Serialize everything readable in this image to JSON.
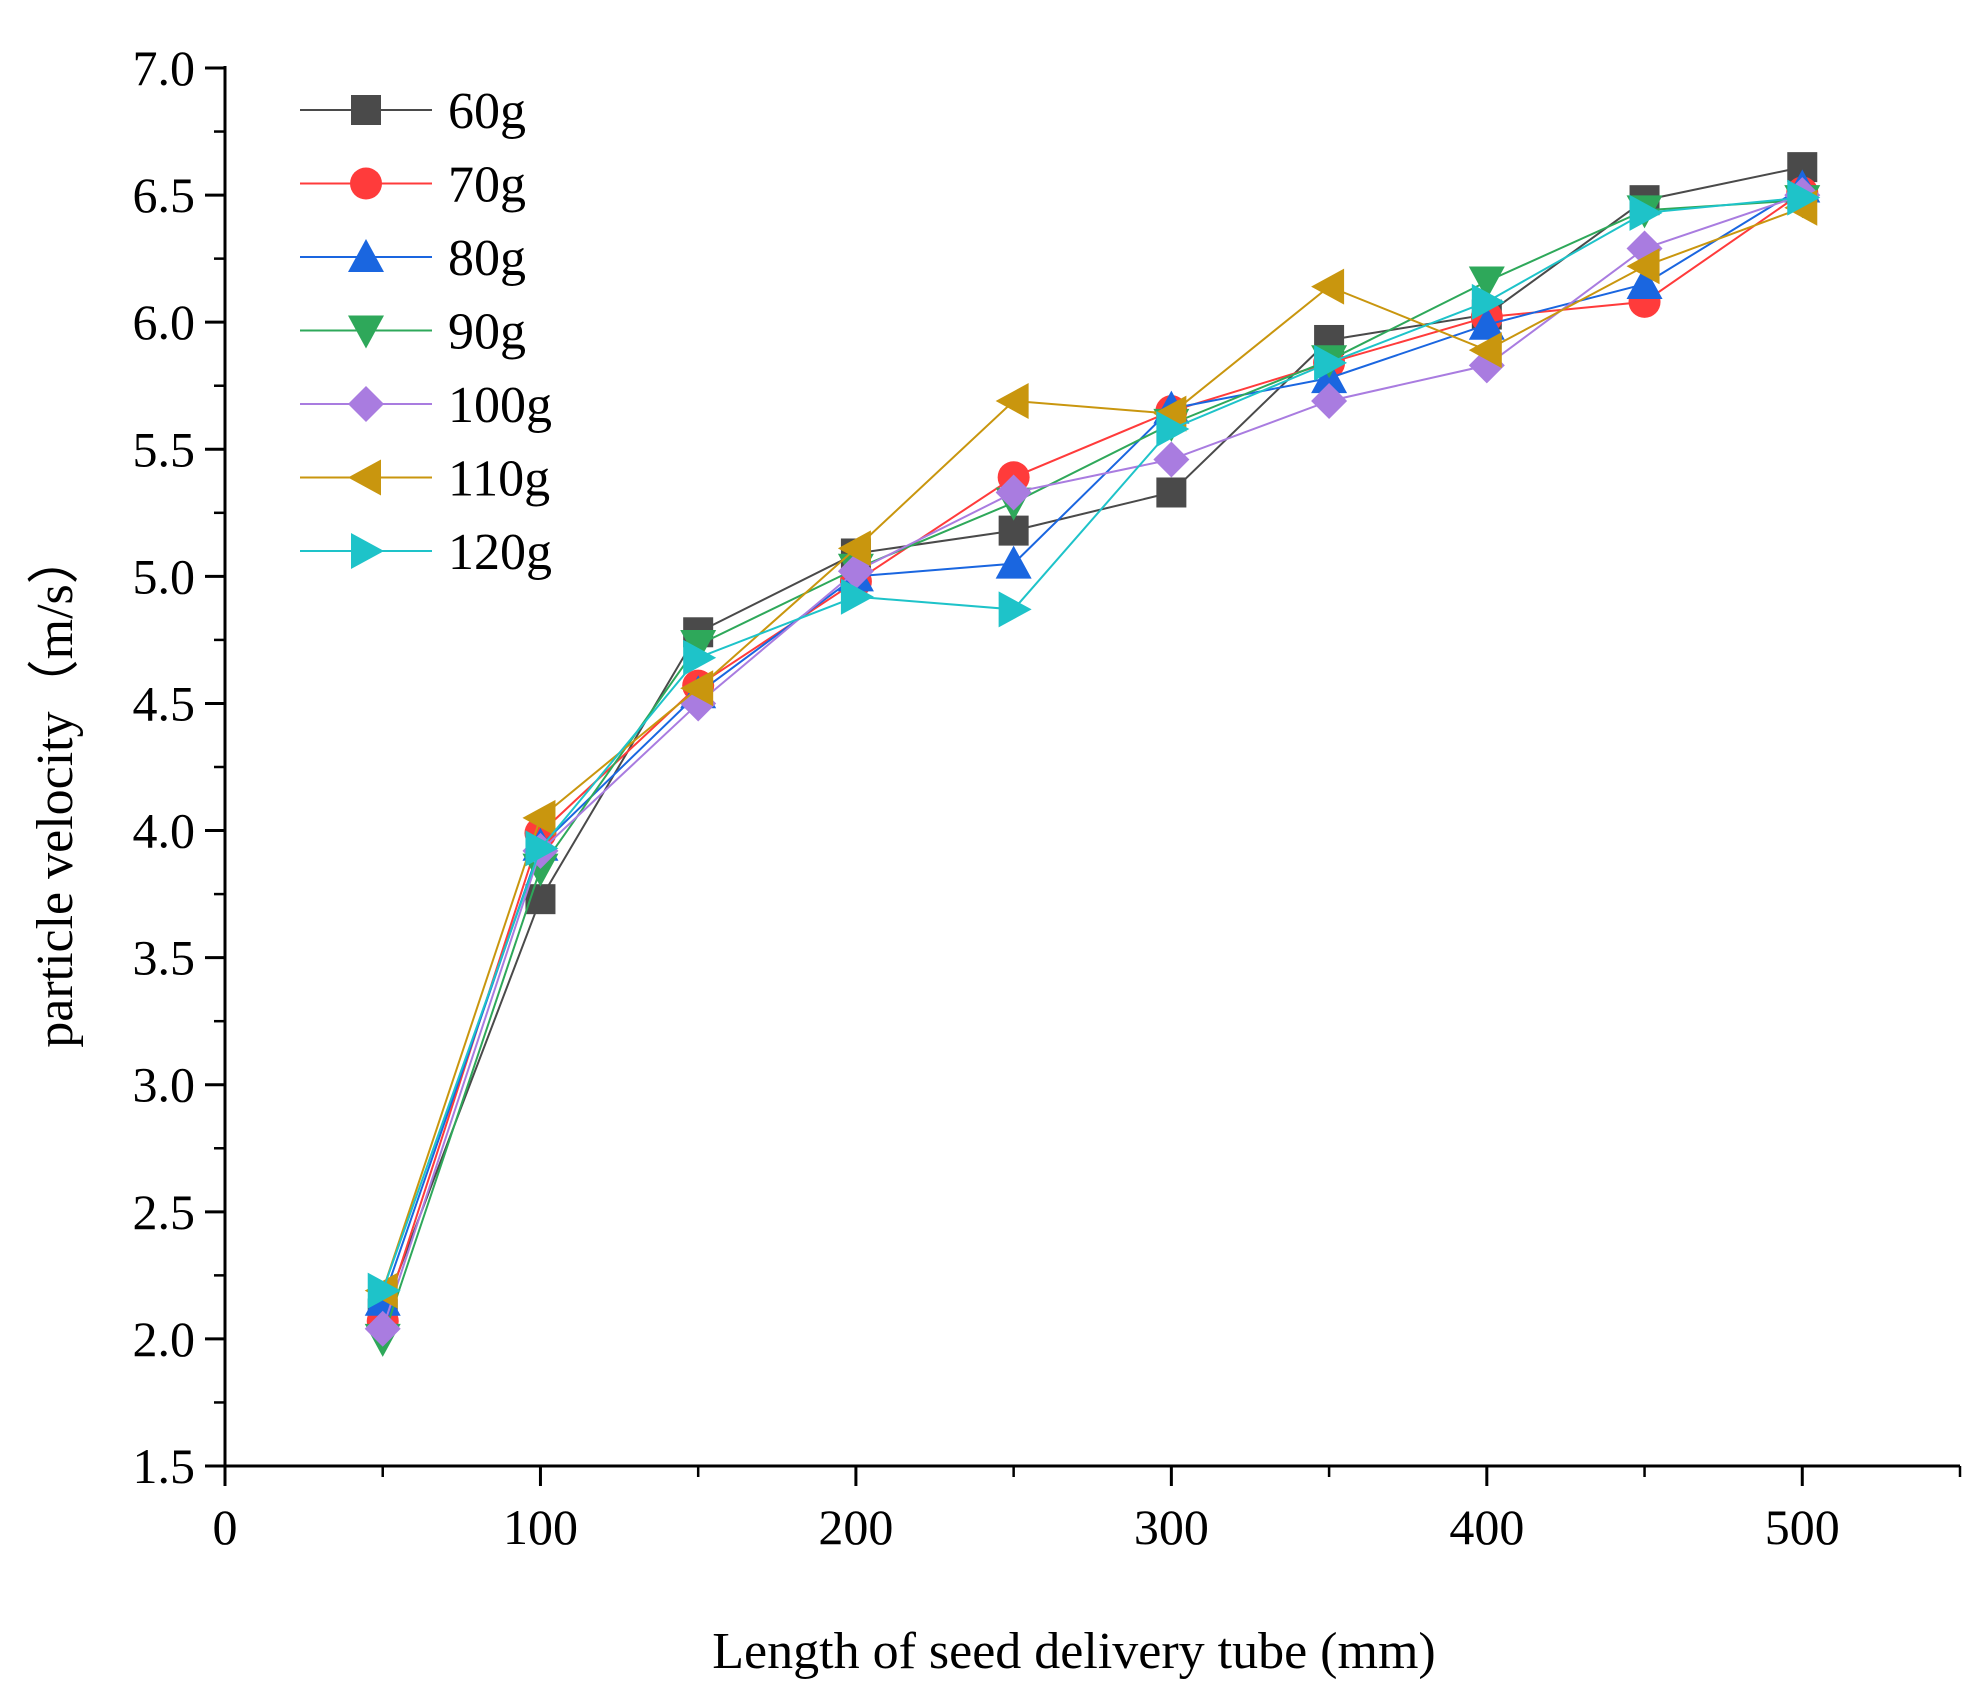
{
  "chart_data": {
    "type": "line",
    "title": "",
    "xlabel": "Length of seed delivery tube (mm)",
    "ylabel": "particle velocity（m/s）",
    "xlim": [
      0,
      550
    ],
    "ylim": [
      1.5,
      7.0
    ],
    "xticks": [
      "0",
      "100",
      "200",
      "300",
      "400",
      "500"
    ],
    "yticks": [
      "1.5",
      "2.0",
      "2.5",
      "3.0",
      "3.5",
      "4.0",
      "4.5",
      "5.0",
      "5.5",
      "6.0",
      "6.5",
      "7.0"
    ],
    "grid": false,
    "legend_position": "top-left",
    "x": [
      50,
      100,
      150,
      200,
      250,
      300,
      350,
      400,
      450,
      500
    ],
    "series": [
      {
        "name": "60g",
        "color": "#4a4a4a",
        "marker": "square",
        "values": [
          2.1,
          3.73,
          4.78,
          5.09,
          5.18,
          5.33,
          5.93,
          6.03,
          6.48,
          6.61
        ]
      },
      {
        "name": "70g",
        "color": "#ff3b3b",
        "marker": "circle",
        "values": [
          2.07,
          3.99,
          4.57,
          4.98,
          5.39,
          5.65,
          5.84,
          6.02,
          6.08,
          6.51
        ]
      },
      {
        "name": "80g",
        "color": "#1a66e0",
        "marker": "triangle-up",
        "values": [
          2.15,
          3.94,
          4.54,
          5.0,
          5.05,
          5.66,
          5.78,
          5.99,
          6.15,
          6.53
        ]
      },
      {
        "name": "90g",
        "color": "#2ea85a",
        "marker": "triangle-down",
        "values": [
          2.0,
          3.85,
          4.73,
          5.03,
          5.29,
          5.6,
          5.85,
          6.16,
          6.44,
          6.48
        ]
      },
      {
        "name": "100g",
        "color": "#a97ce0",
        "marker": "diamond",
        "values": [
          2.04,
          3.92,
          4.5,
          5.02,
          5.33,
          5.46,
          5.69,
          5.83,
          6.29,
          6.5
        ]
      },
      {
        "name": "110g",
        "color": "#c9960e",
        "marker": "triangle-left",
        "values": [
          2.19,
          4.05,
          4.56,
          5.11,
          5.69,
          5.64,
          6.14,
          5.89,
          6.22,
          6.45
        ]
      },
      {
        "name": "120g",
        "color": "#1ec3c9",
        "marker": "triangle-right",
        "values": [
          2.19,
          3.93,
          4.68,
          4.92,
          4.87,
          5.58,
          5.84,
          6.08,
          6.43,
          6.49
        ]
      }
    ]
  }
}
